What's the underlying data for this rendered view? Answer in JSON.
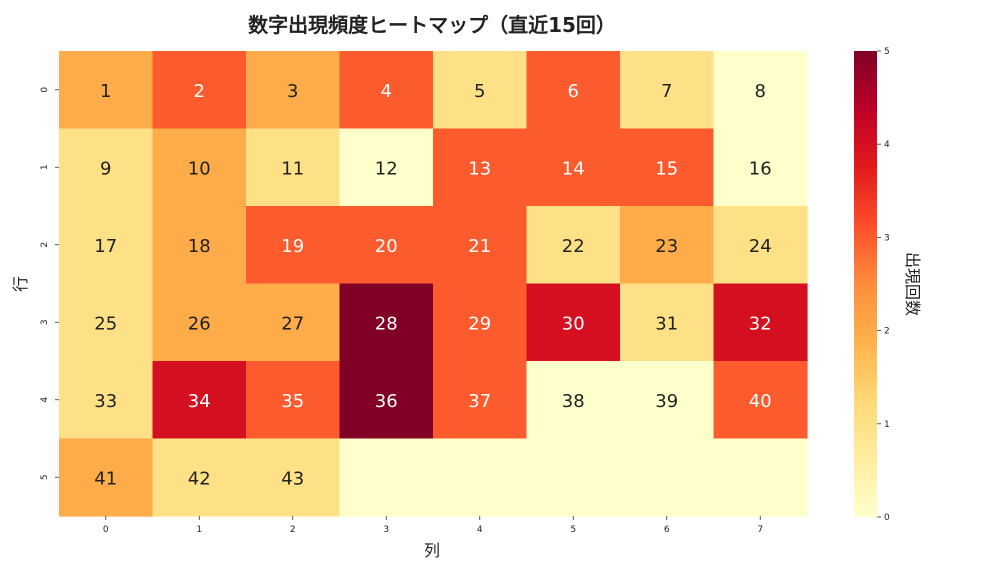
{
  "chart_data": {
    "type": "heatmap",
    "title": "数字出現頻度ヒートマップ（直近15回）",
    "xlabel": "列",
    "ylabel": "行",
    "x_ticks": [
      "0",
      "1",
      "2",
      "3",
      "4",
      "5",
      "6",
      "7"
    ],
    "y_ticks": [
      "0",
      "1",
      "2",
      "3",
      "4",
      "5"
    ],
    "colorbar": {
      "label": "出現回数",
      "ticks": [
        "0",
        "1",
        "2",
        "3",
        "4",
        "5"
      ],
      "min": 0,
      "max": 5,
      "colormap": "YlOrRd"
    },
    "cell_labels": [
      [
        "1",
        "2",
        "3",
        "4",
        "5",
        "6",
        "7",
        "8"
      ],
      [
        "9",
        "10",
        "11",
        "12",
        "13",
        "14",
        "15",
        "16"
      ],
      [
        "17",
        "18",
        "19",
        "20",
        "21",
        "22",
        "23",
        "24"
      ],
      [
        "25",
        "26",
        "27",
        "28",
        "29",
        "30",
        "31",
        "32"
      ],
      [
        "33",
        "34",
        "35",
        "36",
        "37",
        "38",
        "39",
        "40"
      ],
      [
        "41",
        "42",
        "43",
        "",
        "",
        "",
        "",
        ""
      ]
    ],
    "values": [
      [
        2,
        3,
        2,
        3,
        1,
        3,
        1,
        0
      ],
      [
        1,
        2,
        1,
        0,
        3,
        3,
        3,
        0
      ],
      [
        1,
        2,
        3,
        3,
        3,
        1,
        2,
        1
      ],
      [
        1,
        2,
        2,
        5,
        3,
        4,
        1,
        4
      ],
      [
        1,
        4,
        3,
        5,
        3,
        0,
        0,
        3
      ],
      [
        2,
        1,
        1,
        0,
        0,
        0,
        0,
        0
      ]
    ]
  }
}
